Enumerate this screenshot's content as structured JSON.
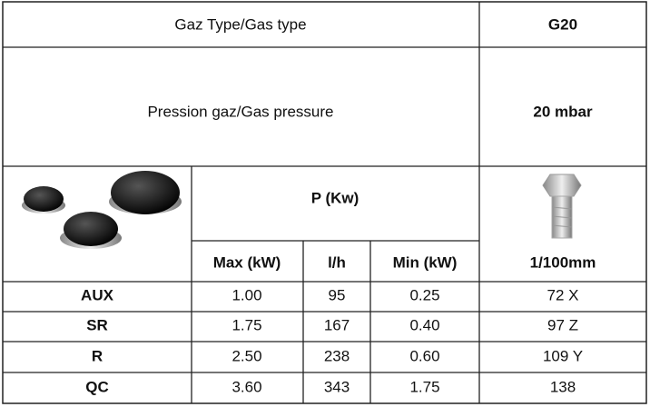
{
  "header": {
    "gas_type_label": "Gaz Type/Gas type",
    "gas_type_value": "G20",
    "pressure_label": "Pression gaz/Gas pressure",
    "pressure_value": "20 mbar"
  },
  "table": {
    "group_header": "P (Kw)",
    "columns": [
      "Max (kW)",
      "l/h",
      "Min (kW)",
      "1/100mm"
    ],
    "rows": [
      [
        "AUX",
        "1.00",
        "95",
        "0.25",
        "72 X"
      ],
      [
        "SR",
        "1.75",
        "167",
        "0.40",
        "97 Z"
      ],
      [
        "R",
        "2.50",
        "238",
        "0.60",
        "109 Y"
      ],
      [
        "QC",
        "3.60",
        "343",
        "1.75",
        "138"
      ]
    ]
  }
}
